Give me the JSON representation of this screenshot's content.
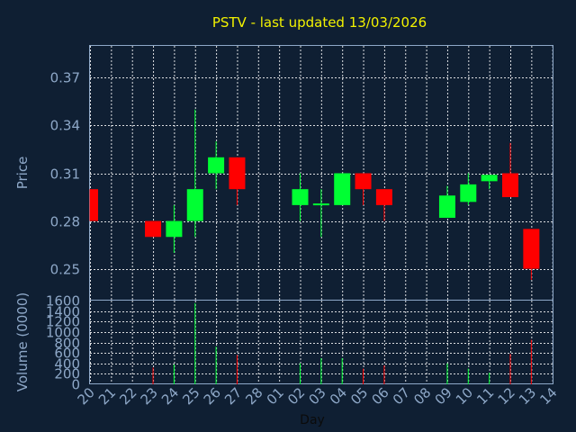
{
  "chart_data": {
    "type": "candlestick",
    "title": "PSTV - last updated 13/03/2026",
    "price_panel": {
      "ylabel": "Price",
      "yticks": [
        "0.37",
        "0.34",
        "0.31",
        "0.28",
        "0.25"
      ],
      "ytick_values": [
        0.37,
        0.34,
        0.31,
        0.28,
        0.25
      ],
      "ylim": [
        0.23,
        0.39
      ],
      "grid": true
    },
    "volume_panel": {
      "ylabel": "Volume (0000)",
      "yticks": [
        "1600",
        "1400",
        "1200",
        "1000",
        "800",
        "600",
        "400",
        "200",
        "0"
      ],
      "ytick_values": [
        1600,
        1400,
        1200,
        1000,
        800,
        600,
        400,
        200,
        0
      ],
      "ylim": [
        0,
        1600
      ],
      "grid": true
    },
    "xlabel": "Day",
    "x_tick_labels": [
      "20",
      "21",
      "22",
      "23",
      "24",
      "25",
      "26",
      "27",
      "28",
      "01",
      "02",
      "03",
      "04",
      "05",
      "06",
      "07",
      "08",
      "09",
      "10",
      "11",
      "12",
      "13",
      "14"
    ],
    "colors": {
      "up": "#00ff33",
      "down": "#ff0000",
      "title": "#f2f200",
      "background": "#0f1f33",
      "axis_text": "#8ea8c8"
    },
    "candles": [
      {
        "day": "20",
        "open": 0.3,
        "high": 0.3,
        "low": 0.28,
        "close": 0.28,
        "volume": 0
      },
      {
        "day": "23",
        "open": 0.28,
        "high": 0.28,
        "low": 0.27,
        "close": 0.27,
        "volume": 320
      },
      {
        "day": "24",
        "open": 0.27,
        "high": 0.29,
        "low": 0.26,
        "close": 0.28,
        "volume": 380
      },
      {
        "day": "25",
        "open": 0.28,
        "high": 0.35,
        "low": 0.27,
        "close": 0.3,
        "volume": 1550
      },
      {
        "day": "26",
        "open": 0.31,
        "high": 0.33,
        "low": 0.3,
        "close": 0.32,
        "volume": 720
      },
      {
        "day": "27",
        "open": 0.32,
        "high": 0.32,
        "low": 0.29,
        "close": 0.3,
        "volume": 560
      },
      {
        "day": "02",
        "open": 0.29,
        "high": 0.31,
        "low": 0.28,
        "close": 0.3,
        "volume": 400
      },
      {
        "day": "03",
        "open": 0.29,
        "high": 0.3,
        "low": 0.27,
        "close": 0.291,
        "volume": 500
      },
      {
        "day": "04",
        "open": 0.29,
        "high": 0.31,
        "low": 0.29,
        "close": 0.31,
        "volume": 500
      },
      {
        "day": "05",
        "open": 0.31,
        "high": 0.31,
        "low": 0.29,
        "close": 0.3,
        "volume": 300
      },
      {
        "day": "06",
        "open": 0.3,
        "high": 0.3,
        "low": 0.28,
        "close": 0.29,
        "volume": 360
      },
      {
        "day": "09",
        "open": 0.282,
        "high": 0.302,
        "low": 0.282,
        "close": 0.296,
        "volume": 400
      },
      {
        "day": "10",
        "open": 0.292,
        "high": 0.31,
        "low": 0.29,
        "close": 0.303,
        "volume": 300
      },
      {
        "day": "11",
        "open": 0.305,
        "high": 0.309,
        "low": 0.3,
        "close": 0.309,
        "volume": 220
      },
      {
        "day": "12",
        "open": 0.31,
        "high": 0.329,
        "low": 0.295,
        "close": 0.295,
        "volume": 580
      },
      {
        "day": "13",
        "open": 0.275,
        "high": 0.275,
        "low": 0.243,
        "close": 0.25,
        "volume": 850
      }
    ]
  }
}
